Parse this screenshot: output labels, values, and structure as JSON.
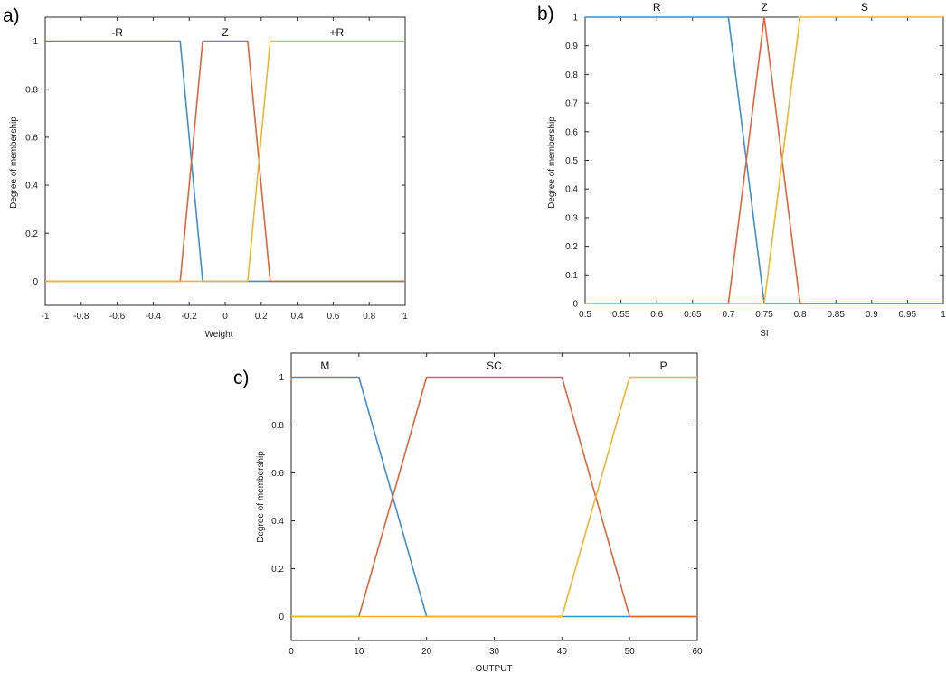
{
  "colors": {
    "blue": "#3d8fcc",
    "red": "#e0643a",
    "yellow": "#edb631"
  },
  "chart_data": [
    {
      "type": "line",
      "panel_label": "a)",
      "xlabel": "Weight",
      "ylabel": "Degree of membership",
      "xlim": [
        -1,
        1
      ],
      "ylim": [
        -0.1,
        1.1
      ],
      "xticks": [
        -1,
        -0.8,
        -0.6,
        -0.4,
        -0.2,
        0,
        0.2,
        0.4,
        0.6,
        0.8,
        1
      ],
      "xtick_labels": [
        "-1",
        "-0.8",
        "-0.6",
        "-0.4",
        "-0.2",
        "0",
        "0.2",
        "0.4",
        "0.6",
        "0.8",
        "1"
      ],
      "yticks": [
        0,
        0.2,
        0.4,
        0.6,
        0.8,
        1
      ],
      "ytick_labels": [
        "0",
        "0.2",
        "0.4",
        "0.6",
        "0.8",
        "1"
      ],
      "grid": false,
      "series": [
        {
          "name": "-R",
          "color": "#3d8fcc",
          "x": [
            -1,
            -0.25,
            -0.125,
            1
          ],
          "y": [
            1,
            1,
            0,
            0
          ]
        },
        {
          "name": "Z",
          "color": "#e0643a",
          "x": [
            -1,
            -0.25,
            -0.125,
            0.125,
            0.25,
            1
          ],
          "y": [
            0,
            0,
            1,
            1,
            0,
            0
          ]
        },
        {
          "name": "+R",
          "color": "#edb631",
          "x": [
            -1,
            0.125,
            0.25,
            1
          ],
          "y": [
            0,
            0,
            1,
            1
          ]
        }
      ],
      "mf_labels": [
        {
          "text": "-R",
          "x": -0.6
        },
        {
          "text": "Z",
          "x": 0
        },
        {
          "text": "+R",
          "x": 0.62
        }
      ]
    },
    {
      "type": "line",
      "panel_label": "b)",
      "xlabel": "SI",
      "ylabel": "Degree of membership",
      "xlim": [
        0.5,
        1
      ],
      "ylim": [
        0,
        1
      ],
      "xticks": [
        0.5,
        0.55,
        0.6,
        0.65,
        0.7,
        0.75,
        0.8,
        0.85,
        0.9,
        0.95,
        1
      ],
      "xtick_labels": [
        "0.5",
        "0.55",
        "0.6",
        "0.65",
        "0.7",
        "0.75",
        "0.8",
        "0.85",
        "0.9",
        "0.95",
        "1"
      ],
      "yticks": [
        0,
        0.1,
        0.2,
        0.3,
        0.4,
        0.5,
        0.6,
        0.7,
        0.8,
        0.9,
        1
      ],
      "ytick_labels": [
        "0",
        "0.1",
        "0.2",
        "0.3",
        "0.4",
        "0.5",
        "0.6",
        "0.7",
        "0.8",
        "0.9",
        "1"
      ],
      "grid": false,
      "series": [
        {
          "name": "R",
          "color": "#3d8fcc",
          "x": [
            0.5,
            0.7,
            0.75,
            1
          ],
          "y": [
            1,
            1,
            0,
            0
          ]
        },
        {
          "name": "Z",
          "color": "#e0643a",
          "x": [
            0.5,
            0.7,
            0.75,
            0.8,
            1
          ],
          "y": [
            0,
            0,
            1,
            0,
            0
          ]
        },
        {
          "name": "S",
          "color": "#edb631",
          "x": [
            0.5,
            0.75,
            0.8,
            1
          ],
          "y": [
            0,
            0,
            1,
            1
          ]
        }
      ],
      "mf_labels": [
        {
          "text": "R",
          "x": 0.6
        },
        {
          "text": "Z",
          "x": 0.75
        },
        {
          "text": "S",
          "x": 0.89
        }
      ]
    },
    {
      "type": "line",
      "panel_label": "c)",
      "xlabel": "OUTPUT",
      "ylabel": "Degree of membership",
      "xlim": [
        0,
        60
      ],
      "ylim": [
        -0.1,
        1.1
      ],
      "xticks": [
        0,
        10,
        20,
        30,
        40,
        50,
        60
      ],
      "xtick_labels": [
        "0",
        "10",
        "20",
        "30",
        "40",
        "50",
        "60"
      ],
      "yticks": [
        0,
        0.2,
        0.4,
        0.6,
        0.8,
        1
      ],
      "ytick_labels": [
        "0",
        "0.2",
        "0.4",
        "0.6",
        "0.8",
        "1"
      ],
      "grid": false,
      "series": [
        {
          "name": "M",
          "color": "#3d8fcc",
          "x": [
            0,
            10,
            20,
            60
          ],
          "y": [
            1,
            1,
            0,
            0
          ]
        },
        {
          "name": "SC",
          "color": "#e0643a",
          "x": [
            0,
            10,
            20,
            40,
            50,
            60
          ],
          "y": [
            0,
            0,
            1,
            1,
            0,
            0
          ]
        },
        {
          "name": "P",
          "color": "#edb631",
          "x": [
            0,
            40,
            50,
            60
          ],
          "y": [
            0,
            0,
            1,
            1
          ]
        }
      ],
      "mf_labels": [
        {
          "text": "M",
          "x": 5
        },
        {
          "text": "SC",
          "x": 30
        },
        {
          "text": "P",
          "x": 55
        }
      ]
    }
  ]
}
